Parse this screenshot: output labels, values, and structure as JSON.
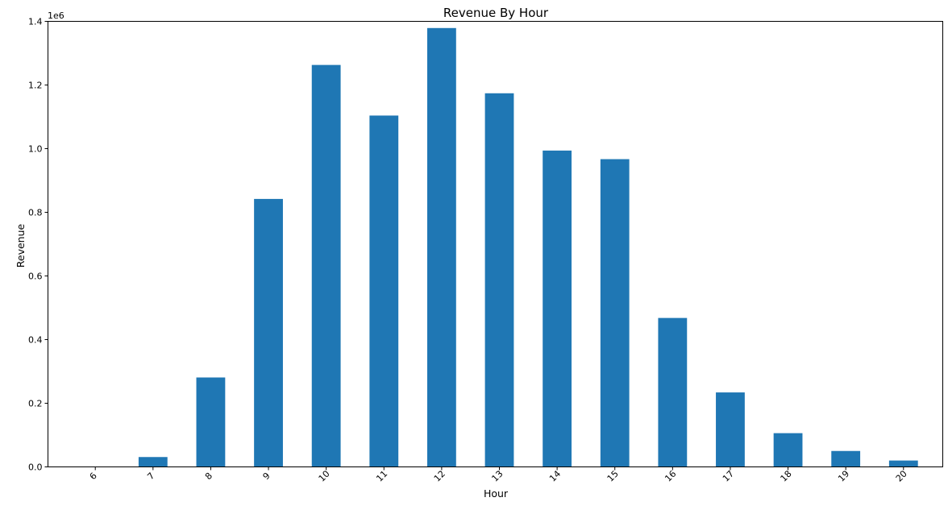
{
  "chart_data": {
    "type": "bar",
    "title": "Revenue By Hour",
    "xlabel": "Hour",
    "ylabel": "Revenue",
    "y_offset_label": "1e6",
    "categories": [
      "6",
      "7",
      "8",
      "9",
      "10",
      "11",
      "12",
      "13",
      "14",
      "15",
      "16",
      "17",
      "18",
      "19",
      "20"
    ],
    "values": [
      0.0,
      0.031,
      0.281,
      0.842,
      1.263,
      1.104,
      1.379,
      1.174,
      0.994,
      0.967,
      0.468,
      0.234,
      0.106,
      0.05,
      0.02
    ],
    "value_scale": 1000000,
    "ylim": [
      0,
      1.4
    ],
    "yticks": [
      0.0,
      0.2,
      0.4,
      0.6,
      0.8,
      1.0,
      1.2,
      1.4
    ],
    "ytick_labels": [
      "0.0",
      "0.2",
      "0.4",
      "0.6",
      "0.8",
      "1.0",
      "1.2",
      "1.4"
    ],
    "grid": false,
    "legend": "none",
    "bar_color": "#1f77b4"
  }
}
